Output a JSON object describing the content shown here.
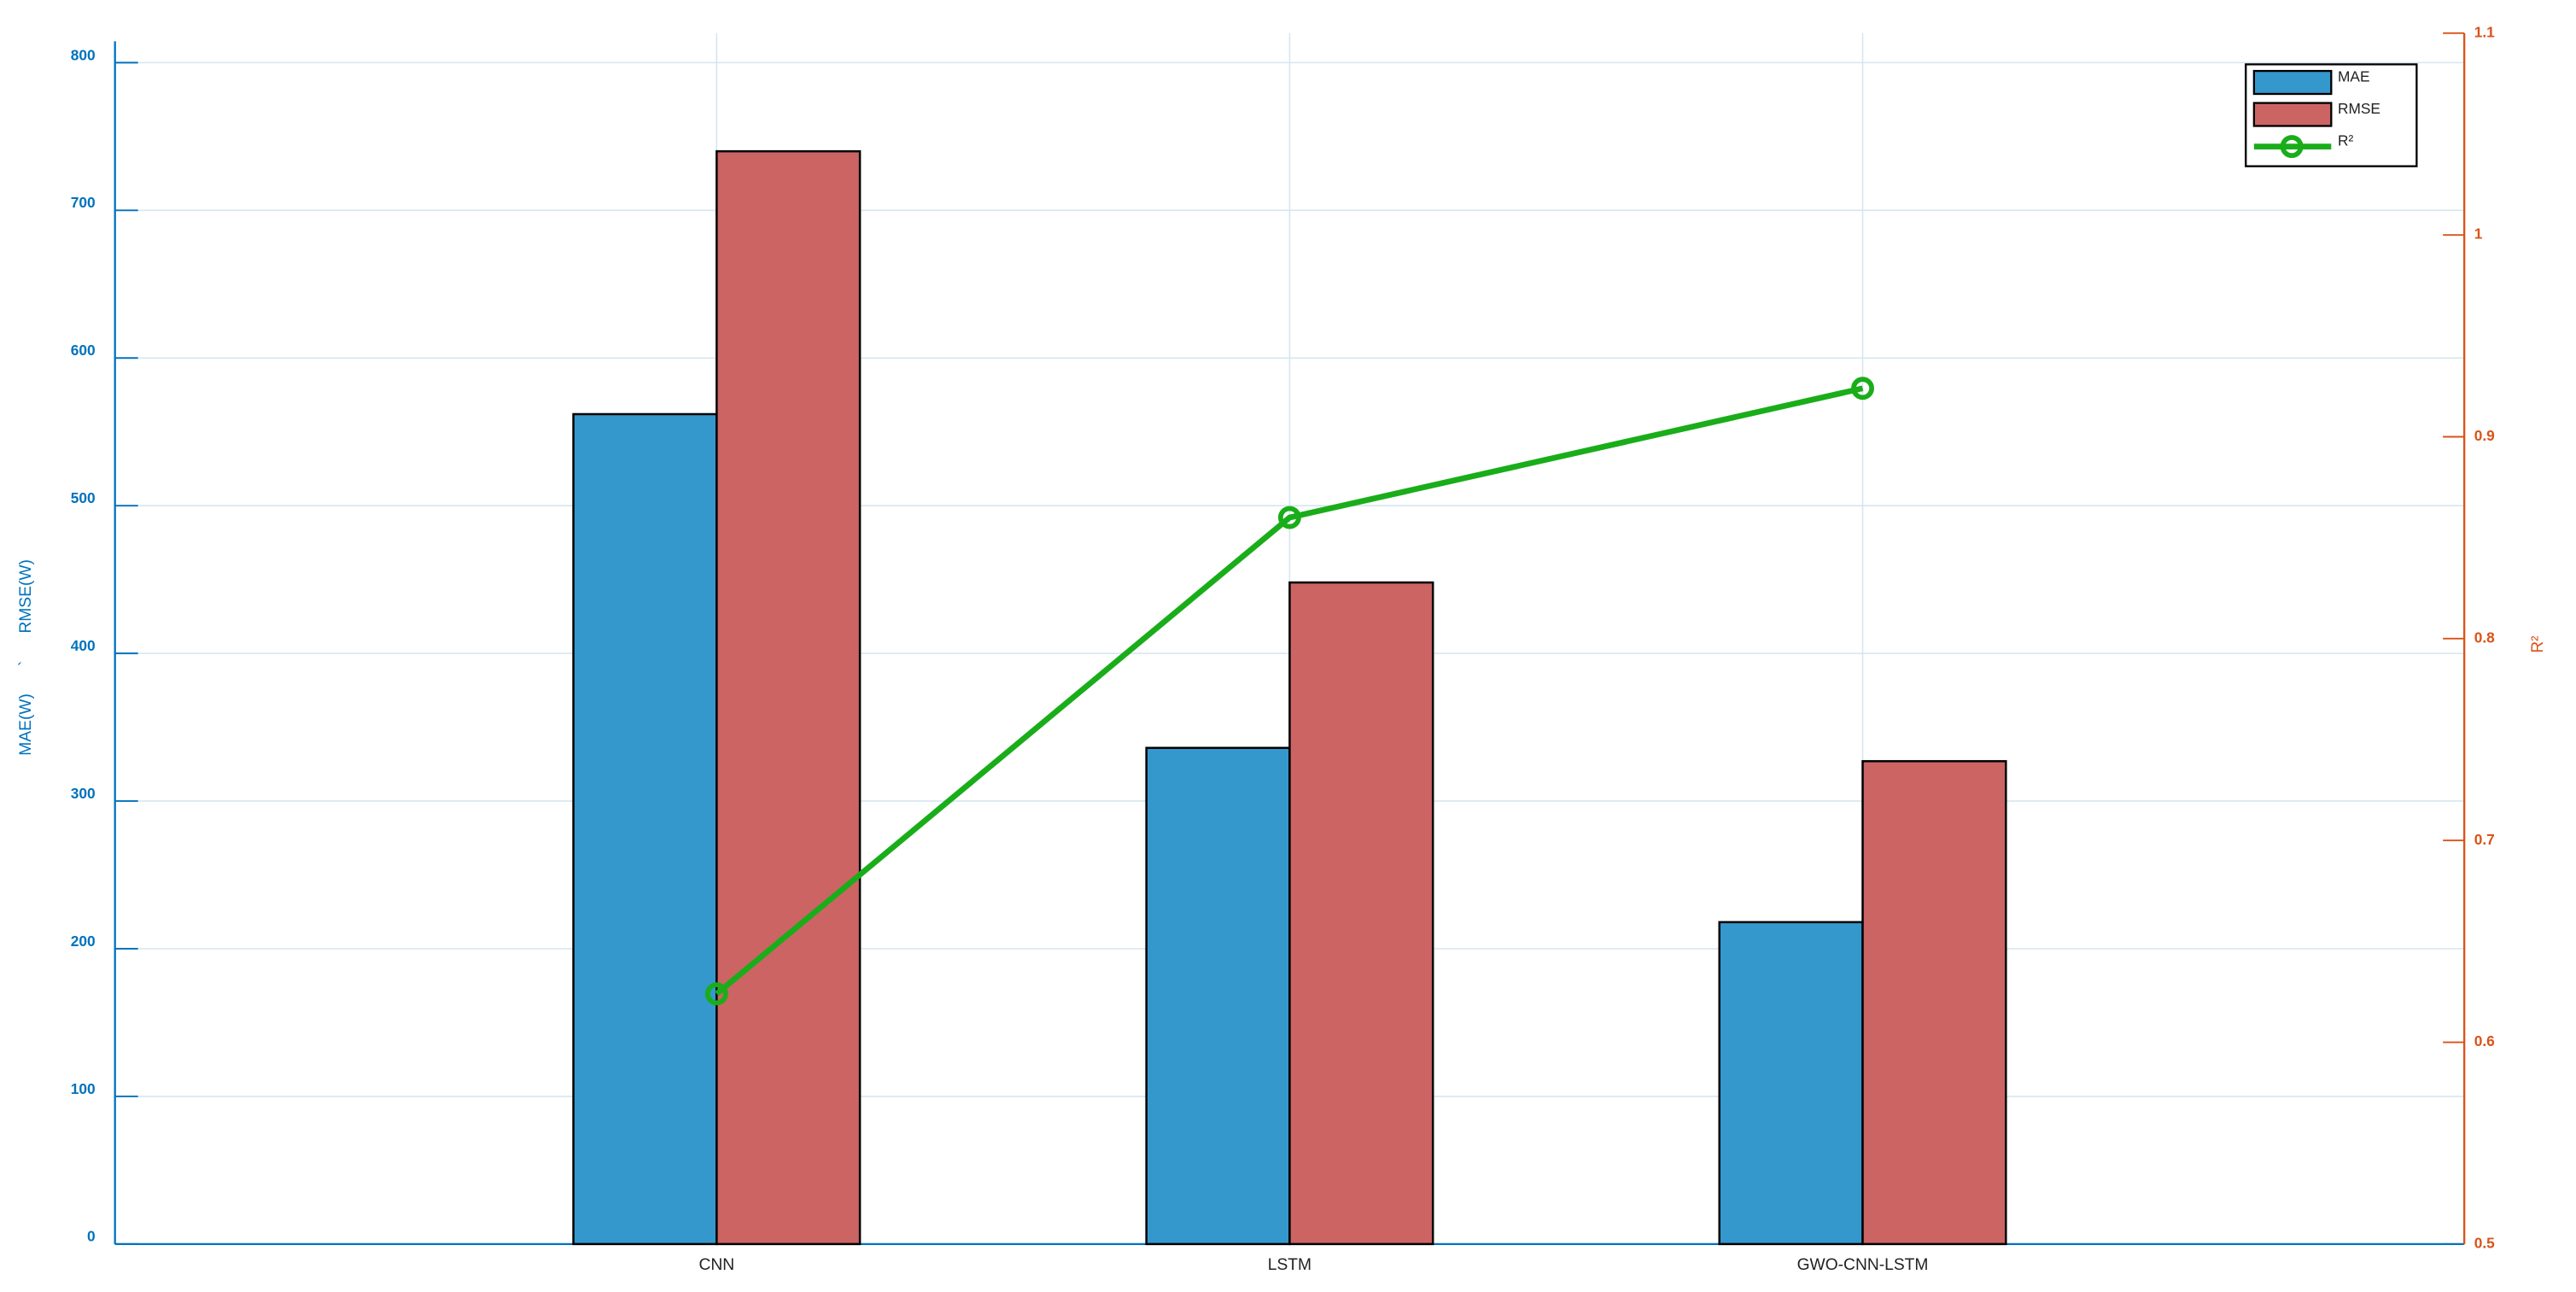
{
  "chart_data": {
    "type": "bar",
    "categories": [
      "CNN",
      "LSTM",
      "GWO-CNN-LSTM"
    ],
    "y_label": "MAE(W)      `      RMSE(W)",
    "y2_label": "R²",
    "series": [
      {
        "name": "MAE",
        "color": "#3498cd",
        "values": [
          562,
          336,
          218
        ]
      },
      {
        "name": "RMSE",
        "color": "#cc6464",
        "values": [
          740,
          448,
          327
        ]
      },
      {
        "name": "R²",
        "type": "line",
        "axis": "y2",
        "color": "#1aad1a",
        "values": [
          0.624,
          0.86,
          0.924
        ]
      }
    ],
    "ylim": [
      0,
      820
    ],
    "yticks": [
      0,
      100,
      200,
      300,
      400,
      500,
      600,
      700,
      800
    ],
    "y2lim": [
      0.5,
      1.1
    ],
    "y2ticks": [
      0.5,
      0.6,
      0.7,
      0.8,
      0.9,
      1,
      1.1
    ],
    "grid": true,
    "legend": "upper right",
    "left_axis_color": "#0072bd",
    "right_axis_color": "#d95319"
  }
}
